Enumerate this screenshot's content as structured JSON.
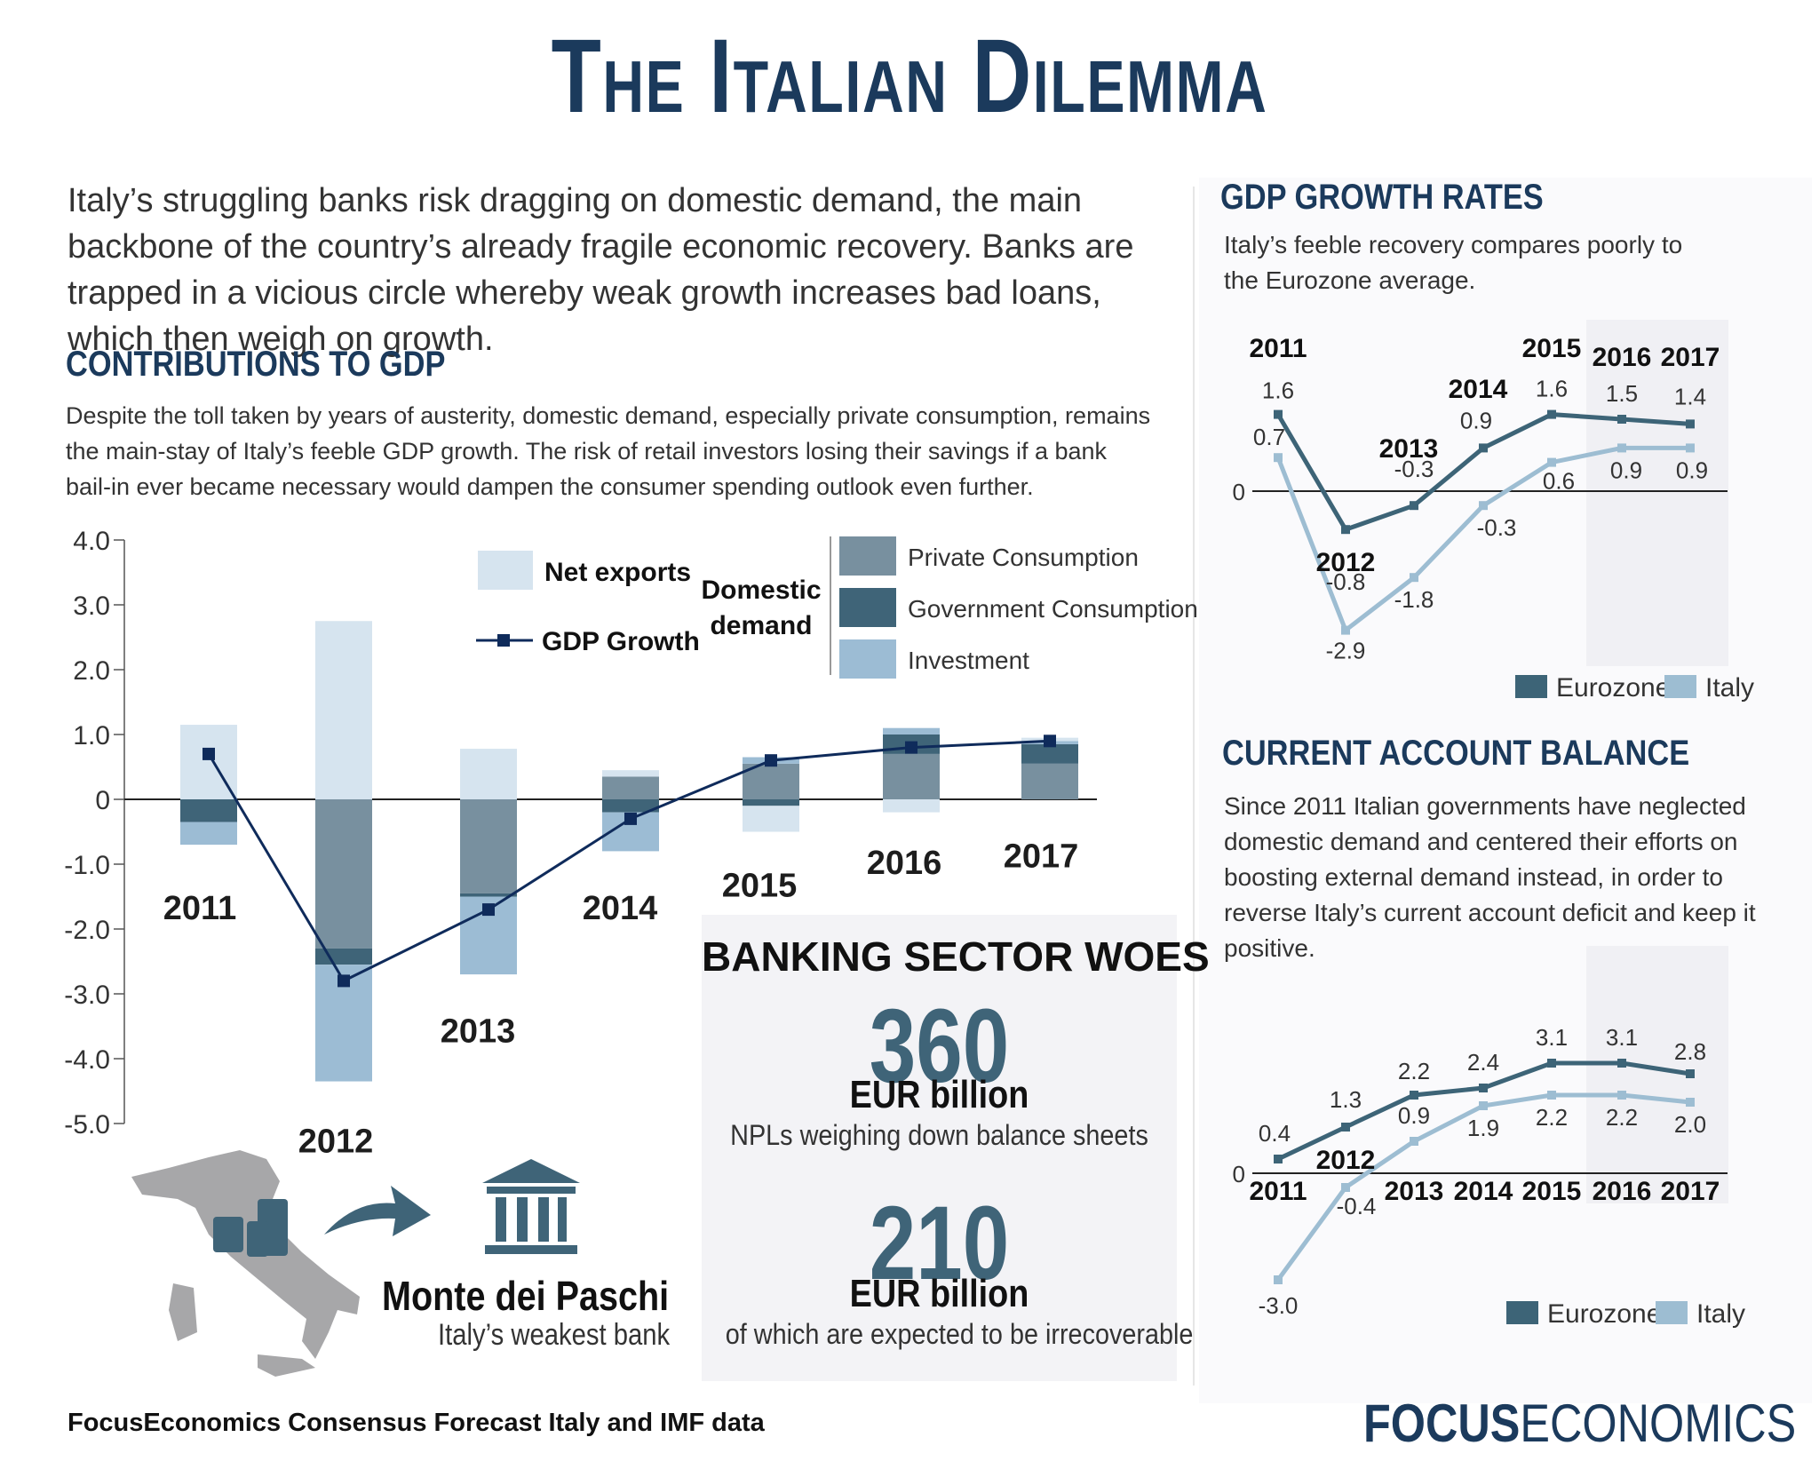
{
  "title": "The Italian Dilemma",
  "intro": "Italy’s struggling banks risk dragging on domestic demand, the main backbone of the country’s already fragile economic recovery. Banks are trapped in a vicious circle whereby weak growth increases bad loans, which then weigh on growth.",
  "colors": {
    "navy": "#1b3a5c",
    "net_exports": "#d6e4ef",
    "private": "#78909f",
    "government": "#3f6478",
    "investment": "#9cbcd4",
    "gdp_line": "#0f2b5b",
    "eurozone": "#3d6477",
    "italy": "#9dbdd2"
  },
  "contrib": {
    "heading": "CONTRIBUTIONS TO GDP",
    "text": "Despite the toll taken by years of austerity, domestic demand, especially private consumption, remains the main-stay of Italy’s feeble GDP growth. The risk of retail investors losing their savings if a bank bail-in ever became necessary would dampen the consumer spending outlook even further.",
    "legend": {
      "net_exports": "Net exports",
      "gdp_growth": "GDP Growth",
      "domestic_demand": [
        "Domestic",
        "demand"
      ],
      "private": "Private Consumption",
      "government": "Government Consumption",
      "investment": "Investment"
    }
  },
  "banking": {
    "heading": "BANKING SECTOR WOES",
    "stat1_value": "360",
    "stat1_unit": "EUR billion",
    "stat1_desc": "NPLs weighing down balance sheets",
    "stat2_value": "210",
    "stat2_unit": "EUR billion",
    "stat2_desc": "of which are expected to be irrecoverable"
  },
  "bank_name": "Monte dei Paschi",
  "bank_desc": "Italy’s weakest bank",
  "gdp_growth": {
    "heading": "GDP GROWTH RATES",
    "text": "Italy’s feeble recovery compares poorly to the Eurozone average."
  },
  "current_account": {
    "heading": "CURRENT ACCOUNT BALANCE",
    "text": "Since 2011 Italian governments have neglected domestic demand and centered their efforts on boosting external demand instead, in order to reverse Italy’s current account deficit and keep it positive."
  },
  "source": "FocusEconomics Consensus Forecast Italy and IMF data",
  "logo": {
    "bold": "FOCUS",
    "regular": "ECONOMICS"
  },
  "chart_data": [
    {
      "type": "bar",
      "categories": [
        "2011",
        "2012",
        "2013",
        "2014",
        "2015",
        "2016",
        "2017"
      ],
      "ylim": [
        -5,
        4
      ],
      "yticks": [
        "4.0",
        "3.0",
        "2.0",
        "1.0",
        "0",
        "-1.0",
        "-2.0",
        "-3.0",
        "-4.0",
        "-5.0"
      ],
      "stacked": true,
      "series": [
        {
          "name": "Private Consumption",
          "values": [
            0.0,
            -2.3,
            -1.45,
            0.35,
            0.55,
            0.7,
            0.55
          ]
        },
        {
          "name": "Government Consumption",
          "values": [
            -0.35,
            -0.25,
            -0.05,
            -0.2,
            -0.1,
            0.3,
            0.3
          ]
        },
        {
          "name": "Investment",
          "values": [
            -0.35,
            -1.8,
            -1.2,
            -0.6,
            0.1,
            0.1,
            0.05
          ]
        },
        {
          "name": "Net exports",
          "values": [
            1.15,
            2.75,
            0.78,
            0.1,
            -0.4,
            -0.2,
            0.05
          ]
        }
      ],
      "line": {
        "name": "GDP Growth",
        "values": [
          0.7,
          -2.8,
          -1.7,
          -0.3,
          0.6,
          0.8,
          0.9
        ]
      }
    },
    {
      "type": "line",
      "categories": [
        "2011",
        "2012",
        "2013",
        "2014",
        "2015",
        "2016",
        "2017"
      ],
      "series": [
        {
          "name": "Eurozone",
          "values": [
            1.6,
            -0.8,
            -0.3,
            0.9,
            1.6,
            1.5,
            1.4
          ],
          "labels": [
            "1.6",
            "-0.8",
            "-0.3",
            "0.9",
            "1.6",
            "1.5",
            "1.4"
          ]
        },
        {
          "name": "Italy",
          "values": [
            0.7,
            -2.9,
            -1.8,
            -0.3,
            0.6,
            0.9,
            0.9
          ],
          "labels": [
            "0.7",
            "-2.9",
            "-1.8",
            "-0.3",
            "0.6",
            "0.9",
            "0.9"
          ]
        }
      ],
      "zero_label": "0",
      "legend": "bottom-right"
    },
    {
      "type": "line",
      "categories": [
        "2011",
        "2012",
        "2013",
        "2014",
        "2015",
        "2016",
        "2017"
      ],
      "series": [
        {
          "name": "Eurozone",
          "values": [
            0.4,
            1.3,
            2.2,
            2.4,
            3.1,
            3.1,
            2.8
          ],
          "labels": [
            "0.4",
            "1.3",
            "2.2",
            "2.4",
            "3.1",
            "3.1",
            "2.8"
          ]
        },
        {
          "name": "Italy",
          "values": [
            -3.0,
            -0.4,
            0.9,
            1.9,
            2.2,
            2.2,
            2.0
          ],
          "labels": [
            "-3.0",
            "-0.4",
            "0.9",
            "1.9",
            "2.2",
            "2.2",
            "2.0"
          ]
        }
      ],
      "zero_label": "0",
      "legend": "bottom-right"
    }
  ]
}
